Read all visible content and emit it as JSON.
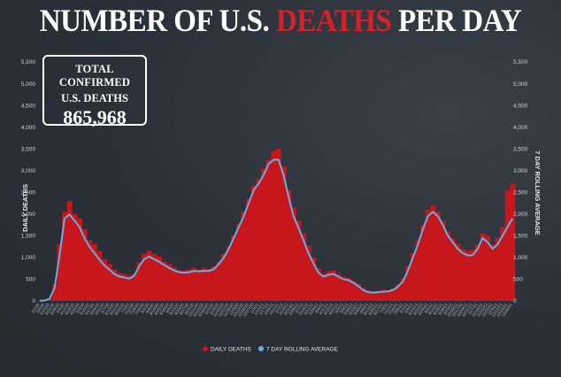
{
  "header": {
    "title_part1": "NUMBER OF U.S. ",
    "title_accent": "DEATHS",
    "title_part2": " PER DAY"
  },
  "total_box": {
    "line1": "TOTAL CONFIRMED",
    "line2": "U.S. DEATHS",
    "value": "865,968"
  },
  "colors": {
    "background": "#2b3038",
    "daily_bar": "#c8161d",
    "rolling_line": "#6aaee0",
    "title_accent": "#d4202a"
  },
  "chart_data": {
    "type": "bar",
    "title": "NUMBER OF U.S. DEATHS PER DAY",
    "ylabel_left": "DAILY DEATHS",
    "ylabel_right": "7 DAY ROLLING AVERAGE",
    "ylim": [
      0,
      5500
    ],
    "yticks": [
      "0",
      "500",
      "1,000",
      "1,500",
      "2,000",
      "2,500",
      "3,000",
      "3,500",
      "4,000",
      "4,500",
      "5,000",
      "5,500"
    ],
    "legend_position": "bottom-center",
    "grid": false,
    "series": [
      {
        "name": "DAILY DEATHS",
        "kind": "bar",
        "x_start": "2020-03-01",
        "x_step_days": 7,
        "values": [
          2,
          15,
          60,
          380,
          1300,
          2050,
          2300,
          2000,
          1900,
          1650,
          1400,
          1300,
          1150,
          960,
          850,
          720,
          640,
          620,
          580,
          620,
          890,
          1080,
          1150,
          1080,
          1020,
          900,
          850,
          770,
          710,
          700,
          720,
          760,
          720,
          760,
          740,
          800,
          900,
          1080,
          1250,
          1500,
          1760,
          2050,
          2350,
          2660,
          2800,
          3050,
          3250,
          3450,
          3500,
          3100,
          2550,
          2150,
          1850,
          1550,
          1270,
          1000,
          750,
          620,
          680,
          700,
          620,
          560,
          530,
          460,
          400,
          300,
          240,
          210,
          230,
          260,
          240,
          290,
          380,
          520,
          800,
          1100,
          1400,
          1750,
          2100,
          2200,
          2050,
          1850,
          1600,
          1450,
          1320,
          1200,
          1150,
          1180,
          1300,
          1550,
          1500,
          1300,
          1450,
          1700,
          2550,
          2700
        ]
      },
      {
        "name": "7 DAY ROLLING AVERAGE",
        "kind": "line",
        "x_start": "2020-03-01",
        "x_step_days": 7,
        "values": [
          2,
          10,
          50,
          300,
          1050,
          1900,
          1990,
          1850,
          1700,
          1450,
          1250,
          1100,
          950,
          820,
          720,
          620,
          560,
          540,
          510,
          580,
          800,
          960,
          1020,
          960,
          900,
          830,
          760,
          700,
          660,
          650,
          660,
          690,
          680,
          690,
          690,
          730,
          850,
          1000,
          1200,
          1450,
          1700,
          1950,
          2250,
          2550,
          2700,
          2900,
          3150,
          3250,
          3250,
          2900,
          2400,
          1950,
          1680,
          1400,
          1100,
          870,
          650,
          560,
          600,
          620,
          560,
          500,
          480,
          420,
          340,
          250,
          200,
          190,
          200,
          210,
          220,
          250,
          330,
          450,
          700,
          1000,
          1300,
          1650,
          1950,
          2050,
          1950,
          1750,
          1500,
          1350,
          1200,
          1100,
          1050,
          1050,
          1200,
          1450,
          1350,
          1200,
          1300,
          1500,
          1700,
          1900
        ]
      }
    ]
  }
}
